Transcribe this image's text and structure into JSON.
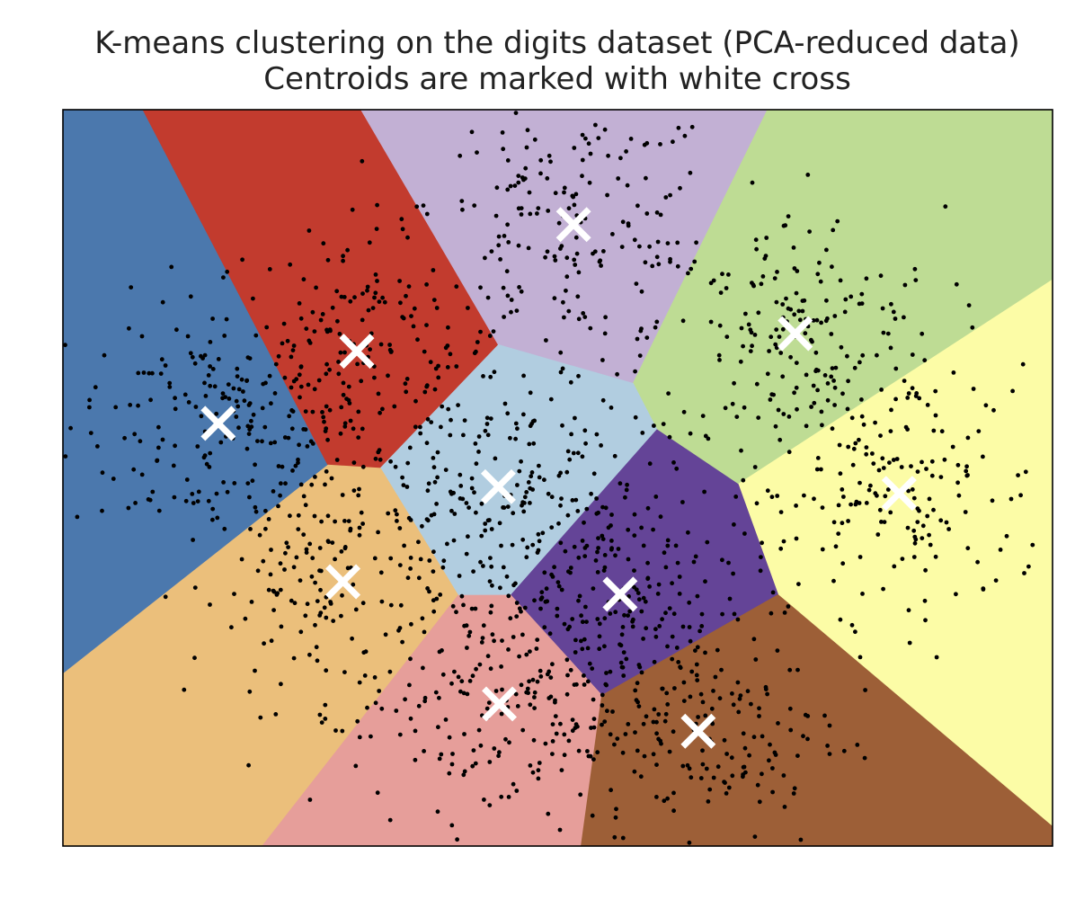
{
  "chart_data": {
    "type": "scatter",
    "title": "K-means clustering on the digits dataset (PCA-reduced data)",
    "subtitle": "Centroids are marked with white cross",
    "xlabel": "",
    "ylabel": "",
    "xlim": [
      0,
      1
    ],
    "ylim": [
      0,
      1
    ],
    "grid": false,
    "ticks": "none",
    "cluster_colors": [
      "#4b78ad",
      "#c23b2e",
      "#c2b0d4",
      "#bedc94",
      "#b1cde0",
      "#fcfca6",
      "#ebbf7b",
      "#644497",
      "#e69e9a",
      "#9d5f37"
    ],
    "centroids": [
      {
        "name": "blue",
        "x": 0.157,
        "y": 0.574,
        "color": "#4b78ad"
      },
      {
        "name": "red",
        "x": 0.297,
        "y": 0.672,
        "color": "#c23b2e"
      },
      {
        "name": "lavender",
        "x": 0.516,
        "y": 0.844,
        "color": "#c2b0d4"
      },
      {
        "name": "light-green",
        "x": 0.74,
        "y": 0.696,
        "color": "#bedc94"
      },
      {
        "name": "light-blue",
        "x": 0.44,
        "y": 0.488,
        "color": "#b1cde0"
      },
      {
        "name": "light-yellow",
        "x": 0.845,
        "y": 0.479,
        "color": "#fcfca6"
      },
      {
        "name": "orange",
        "x": 0.283,
        "y": 0.359,
        "color": "#ebbf7b"
      },
      {
        "name": "purple",
        "x": 0.563,
        "y": 0.342,
        "color": "#644497"
      },
      {
        "name": "pink",
        "x": 0.441,
        "y": 0.193,
        "color": "#e69e9a"
      },
      {
        "name": "brown",
        "x": 0.642,
        "y": 0.156,
        "color": "#9d5f37"
      }
    ],
    "point_count_per_cluster": 180,
    "marker": {
      "points": "black dot",
      "centroids": "white cross"
    }
  }
}
